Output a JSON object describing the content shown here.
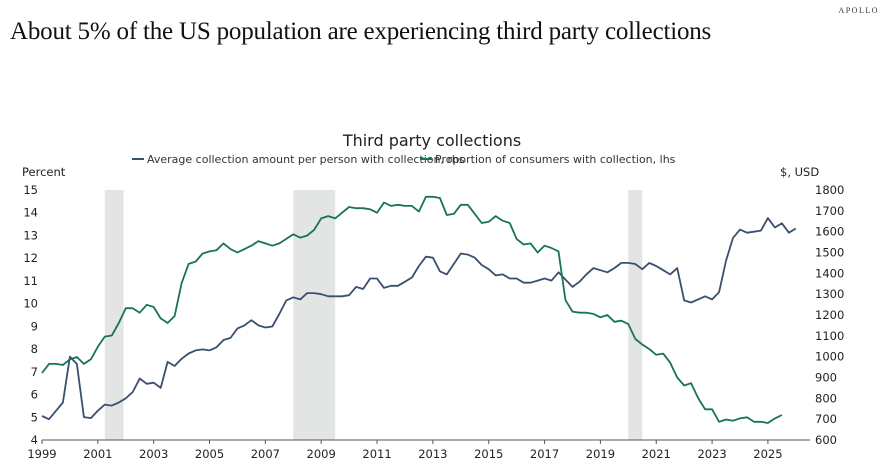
{
  "brand": "APOLLO",
  "headline": "About 5% of the US population are experiencing third party collections",
  "colors": {
    "series_amount": "#3a4f6e",
    "series_proportion": "#18735a",
    "recession": "#e3e4e4",
    "axis": "#555555"
  },
  "chart_data": {
    "type": "line",
    "title": "Third party collections",
    "legend_position": "top-center",
    "left_axis": {
      "label": "Percent",
      "ylim": [
        4,
        15
      ],
      "ticks": [
        4,
        5,
        6,
        7,
        8,
        9,
        10,
        11,
        12,
        13,
        14,
        15
      ]
    },
    "right_axis": {
      "label": "$, USD",
      "ylim": [
        600,
        1800
      ],
      "ticks": [
        600,
        700,
        800,
        900,
        1000,
        1100,
        1200,
        1300,
        1400,
        1500,
        1600,
        1700,
        1800
      ]
    },
    "x_axis": {
      "label": "",
      "xlim": [
        1999,
        2026.5
      ],
      "ticks": [
        1999,
        2001,
        2003,
        2005,
        2007,
        2009,
        2011,
        2013,
        2015,
        2017,
        2019,
        2021,
        2023,
        2025
      ]
    },
    "recessions": [
      [
        2001.25,
        2001.92
      ],
      [
        2008.0,
        2009.5
      ],
      [
        2020.0,
        2020.5
      ]
    ],
    "grid": false,
    "series": [
      {
        "name": "Average collection amount per person with collection, rhs",
        "axis": "right",
        "start": 1999.0,
        "step": 0.25,
        "values": [
          715,
          700,
          740,
          780,
          1000,
          965,
          710,
          705,
          740,
          770,
          765,
          780,
          800,
          830,
          895,
          870,
          875,
          850,
          975,
          955,
          990,
          1015,
          1030,
          1035,
          1030,
          1045,
          1080,
          1090,
          1135,
          1150,
          1175,
          1150,
          1140,
          1145,
          1205,
          1270,
          1285,
          1275,
          1305,
          1305,
          1300,
          1290,
          1290,
          1290,
          1295,
          1335,
          1325,
          1375,
          1375,
          1330,
          1340,
          1340,
          1360,
          1380,
          1435,
          1480,
          1475,
          1410,
          1395,
          1445,
          1495,
          1490,
          1475,
          1440,
          1420,
          1390,
          1395,
          1375,
          1375,
          1355,
          1355,
          1365,
          1375,
          1365,
          1405,
          1370,
          1335,
          1360,
          1395,
          1425,
          1415,
          1405,
          1425,
          1450,
          1450,
          1445,
          1420,
          1450,
          1435,
          1415,
          1395,
          1425,
          1270,
          1260,
          1275,
          1290,
          1275,
          1310,
          1460,
          1570,
          1610,
          1595,
          1600,
          1605,
          1665,
          1620,
          1640,
          1595,
          1615
        ]
      },
      {
        "name": "Proportion of consumers with collection, lhs",
        "axis": "left",
        "start": 1999.0,
        "step": 0.25,
        "values": [
          6.95,
          7.35,
          7.35,
          7.3,
          7.55,
          7.65,
          7.35,
          7.55,
          8.1,
          8.55,
          8.6,
          9.15,
          9.8,
          9.8,
          9.6,
          9.95,
          9.85,
          9.35,
          9.15,
          9.45,
          10.9,
          11.75,
          11.85,
          12.2,
          12.3,
          12.35,
          12.65,
          12.4,
          12.25,
          12.4,
          12.55,
          12.75,
          12.65,
          12.55,
          12.65,
          12.85,
          13.05,
          12.9,
          13.0,
          13.25,
          13.75,
          13.85,
          13.75,
          14.0,
          14.25,
          14.2,
          14.2,
          14.15,
          14.0,
          14.45,
          14.3,
          14.35,
          14.3,
          14.3,
          14.05,
          14.7,
          14.7,
          14.65,
          13.9,
          13.95,
          14.35,
          14.35,
          13.95,
          13.55,
          13.6,
          13.85,
          13.65,
          13.55,
          12.85,
          12.6,
          12.65,
          12.25,
          12.55,
          12.45,
          12.3,
          10.15,
          9.65,
          9.6,
          9.6,
          9.55,
          9.4,
          9.5,
          9.2,
          9.25,
          9.1,
          8.45,
          8.2,
          8.0,
          7.75,
          7.8,
          7.4,
          6.75,
          6.4,
          6.5,
          5.85,
          5.35,
          5.35,
          4.8,
          4.9,
          4.85,
          4.95,
          5.0,
          4.8,
          4.8,
          4.75,
          4.95,
          5.1
        ]
      }
    ]
  }
}
